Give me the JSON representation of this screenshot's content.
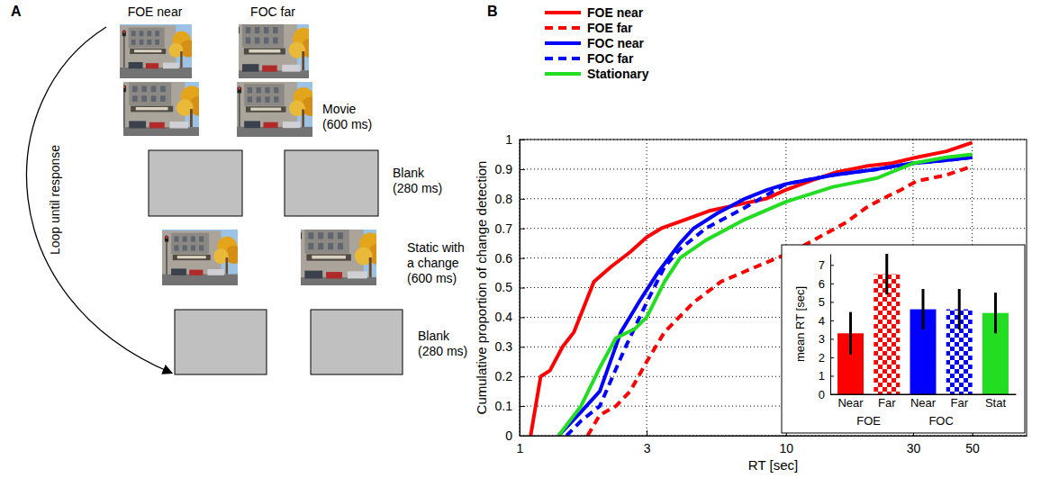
{
  "diagram": {
    "panel_label": "A",
    "columns": [
      "FOE near",
      "FOC far"
    ],
    "loop_label": "Loop until response",
    "steps": [
      {
        "label": "Movie",
        "duration": "(600 ms)",
        "kind": "movie"
      },
      {
        "label": "Blank",
        "duration": "(280 ms)",
        "kind": "blank"
      },
      {
        "label": "Static with a change",
        "duration": "(600 ms)",
        "kind": "static"
      },
      {
        "label": "Blank",
        "duration": "(280 ms)",
        "kind": "blank"
      }
    ]
  },
  "chart_data": [
    {
      "type": "line",
      "panel_label": "B",
      "xlabel": "RT [sec]",
      "ylabel": "Cumulative proportion of change detection",
      "log": "x",
      "xlim": [
        1,
        80
      ],
      "xticks": [
        1,
        3,
        10,
        30,
        50
      ],
      "ylim": [
        0,
        1
      ],
      "yticks": [
        0,
        0.1,
        0.2,
        0.3,
        0.4,
        0.5,
        0.6,
        0.7,
        0.8,
        0.9,
        1
      ],
      "grid": true,
      "legend": "top-left",
      "series": [
        {
          "name": "FOE near",
          "color": "#ff0000",
          "line_style": "solid",
          "x": [
            1.1,
            1.2,
            1.3,
            1.45,
            1.6,
            1.9,
            2.2,
            2.6,
            3,
            3.4,
            4.2,
            5.2,
            6.6,
            8.4,
            10,
            12.3,
            15.5,
            20,
            25,
            31,
            40,
            50
          ],
          "values": [
            0,
            0.2,
            0.22,
            0.3,
            0.35,
            0.52,
            0.57,
            0.62,
            0.67,
            0.7,
            0.73,
            0.76,
            0.78,
            0.8,
            0.83,
            0.86,
            0.89,
            0.91,
            0.92,
            0.94,
            0.96,
            0.99
          ]
        },
        {
          "name": "FOE far",
          "color": "#ff0000",
          "line_style": "dashed",
          "x": [
            1.8,
            2,
            2.3,
            2.6,
            3,
            3.5,
            4.5,
            5.7,
            7.7,
            10.5,
            13.3,
            16.8,
            20,
            23,
            27,
            31,
            40,
            50
          ],
          "values": [
            0,
            0.07,
            0.1,
            0.15,
            0.25,
            0.35,
            0.45,
            0.52,
            0.57,
            0.62,
            0.67,
            0.72,
            0.77,
            0.8,
            0.83,
            0.86,
            0.88,
            0.91
          ]
        },
        {
          "name": "FOC near",
          "color": "#0000ff",
          "line_style": "solid",
          "x": [
            1.4,
            1.7,
            2,
            2.4,
            2.8,
            3.3,
            4,
            4.5,
            5.5,
            7,
            8.5,
            10,
            15,
            22,
            30,
            40,
            50
          ],
          "values": [
            0,
            0.08,
            0.15,
            0.35,
            0.45,
            0.55,
            0.65,
            0.7,
            0.75,
            0.8,
            0.83,
            0.85,
            0.88,
            0.9,
            0.92,
            0.93,
            0.94
          ]
        },
        {
          "name": "FOC far",
          "color": "#0000ff",
          "line_style": "dashed",
          "x": [
            1.5,
            1.7,
            2,
            2.5,
            3,
            3.5,
            4,
            5,
            7,
            10,
            15,
            22,
            30,
            40,
            50
          ],
          "values": [
            0,
            0.05,
            0.1,
            0.3,
            0.45,
            0.57,
            0.63,
            0.7,
            0.77,
            0.85,
            0.88,
            0.9,
            0.92,
            0.93,
            0.94
          ]
        },
        {
          "name": "Stationary",
          "color": "#22dd22",
          "line_style": "solid",
          "x": [
            1.4,
            1.7,
            2,
            2.3,
            2.7,
            3,
            3.5,
            4,
            5,
            7,
            10,
            15,
            22,
            30,
            40,
            50
          ],
          "values": [
            0,
            0.1,
            0.23,
            0.33,
            0.36,
            0.4,
            0.52,
            0.6,
            0.66,
            0.73,
            0.79,
            0.84,
            0.87,
            0.92,
            0.94,
            0.95
          ]
        }
      ]
    },
    {
      "type": "bar",
      "ylabel": "mean RT [sec]",
      "categories": [
        "Near",
        "Far",
        "Near",
        "Far",
        "Stat"
      ],
      "groups": [
        "FOE",
        "FOE",
        "FOC",
        "FOC",
        null
      ],
      "values": [
        3.3,
        6.5,
        4.6,
        4.6,
        4.4
      ],
      "errors": [
        1.15,
        1.1,
        1.1,
        1.1,
        1.1
      ],
      "colors": [
        "#ff0000",
        "#ff0000",
        "#0000ff",
        "#0000ff",
        "#22dd22"
      ],
      "ylim": [
        0,
        7.6
      ],
      "yticks": [
        0,
        1,
        2,
        3,
        4,
        5,
        6,
        7
      ]
    }
  ]
}
